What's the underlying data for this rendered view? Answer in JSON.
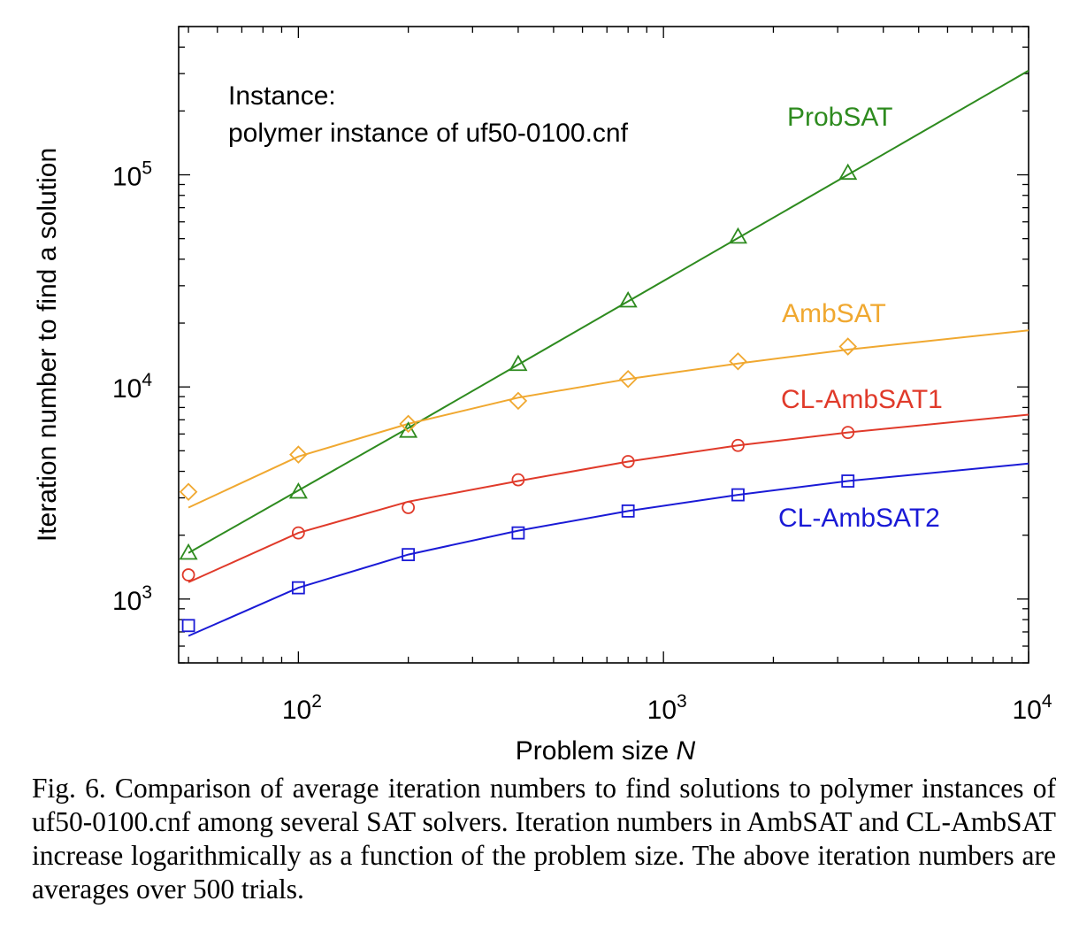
{
  "chart_data": {
    "type": "line",
    "x_scale": "log",
    "y_scale": "log",
    "xlabel": "Problem size",
    "xlabel_italic": "N",
    "ylabel": "Iteration number to find a solution",
    "xlim": [
      47,
      10000
    ],
    "ylim": [
      500,
      500000
    ],
    "x_ticks": [
      {
        "base": "10",
        "exp": "2",
        "value": 100
      },
      {
        "base": "10",
        "exp": "3",
        "value": 1000
      },
      {
        "base": "10",
        "exp": "4",
        "value": 10000
      }
    ],
    "y_ticks": [
      {
        "base": "10",
        "exp": "3",
        "value": 1000
      },
      {
        "base": "10",
        "exp": "4",
        "value": 10000
      },
      {
        "base": "10",
        "exp": "5",
        "value": 100000
      }
    ],
    "annotation": {
      "line1": "Instance:",
      "line2": "polymer instance of uf50-0100.cnf"
    },
    "x": [
      50,
      100,
      200,
      400,
      800,
      1600,
      3200
    ],
    "series": [
      {
        "name": "ProbSAT",
        "color": "#2e8b1f",
        "marker": "triangle",
        "values": [
          1650,
          3200,
          6200,
          12800,
          25500,
          51000,
          102000
        ],
        "fit": {
          "x": [
            50,
            200,
            10000
          ],
          "y": [
            1650,
            6400,
            310000
          ]
        }
      },
      {
        "name": "AmbSAT",
        "color": "#f0a830",
        "marker": "diamond",
        "values": [
          3200,
          4800,
          6700,
          8600,
          10900,
          13200,
          15500
        ],
        "fit": {
          "x": [
            50,
            100,
            200,
            400,
            800,
            1600,
            3200,
            10000
          ],
          "y": [
            2700,
            4700,
            6700,
            8900,
            10900,
            12900,
            15000,
            18500
          ]
        }
      },
      {
        "name": "CL-AmbSAT1",
        "color": "#e03a2a",
        "marker": "circle",
        "values": [
          1300,
          2050,
          2700,
          3650,
          4450,
          5300,
          6100
        ],
        "fit": {
          "x": [
            50,
            100,
            200,
            400,
            800,
            1600,
            3200,
            10000
          ],
          "y": [
            1200,
            2050,
            2880,
            3600,
            4450,
            5300,
            6100,
            7400
          ]
        }
      },
      {
        "name": "CL-AmbSAT2",
        "color": "#1a1ad6",
        "marker": "square",
        "values": [
          750,
          1130,
          1620,
          2050,
          2600,
          3100,
          3600
        ],
        "fit": {
          "x": [
            50,
            100,
            200,
            400,
            800,
            1600,
            3200,
            10000
          ],
          "y": [
            670,
            1130,
            1620,
            2100,
            2600,
            3100,
            3600,
            4350
          ]
        }
      }
    ]
  },
  "caption": "Fig. 6.  Comparison of average iteration numbers to find solutions to polymer instances of uf50-0100.cnf among several SAT solvers. Iteration numbers in AmbSAT and CL-AmbSAT increase logarithmically as a function of the problem size. The above iteration numbers are averages over 500 trials."
}
